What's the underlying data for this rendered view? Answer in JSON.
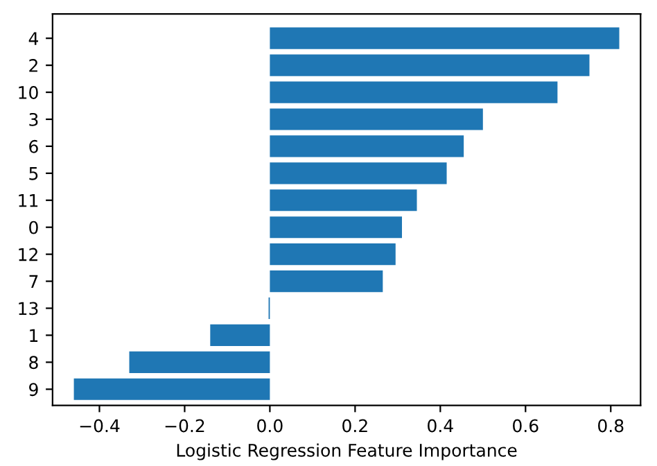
{
  "chart_data": {
    "type": "bar",
    "orientation": "horizontal",
    "xlabel": "Logistic Regression Feature Importance",
    "categories": [
      "4",
      "2",
      "10",
      "3",
      "6",
      "5",
      "11",
      "0",
      "12",
      "7",
      "13",
      "1",
      "8",
      "9"
    ],
    "values": [
      0.82,
      0.75,
      0.675,
      0.5,
      0.455,
      0.415,
      0.345,
      0.31,
      0.295,
      0.265,
      -0.003,
      -0.14,
      -0.33,
      -0.46
    ],
    "color": "#1f77b4",
    "xlim": [
      -0.51,
      0.87
    ],
    "xticks": [
      {
        "value": -0.4,
        "label": "−0.4"
      },
      {
        "value": -0.2,
        "label": "−0.2"
      },
      {
        "value": 0.0,
        "label": "0.0"
      },
      {
        "value": 0.2,
        "label": "0.2"
      },
      {
        "value": 0.4,
        "label": "0.4"
      },
      {
        "value": 0.6,
        "label": "0.6"
      },
      {
        "value": 0.8,
        "label": "0.8"
      }
    ],
    "grid": false,
    "legend": false
  }
}
